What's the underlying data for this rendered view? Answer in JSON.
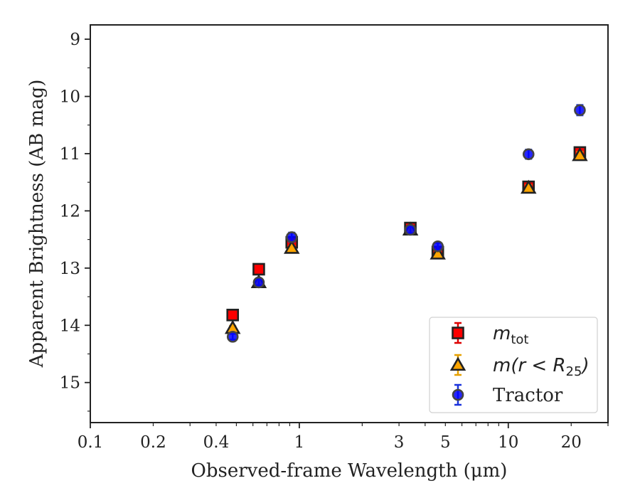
{
  "chart_data": {
    "type": "scatter",
    "xlabel": "Observed-frame Wavelength (μm)",
    "ylabel": "Apparent Brightness (AB mag)",
    "xscale": "log",
    "xlim": [
      0.1,
      30
    ],
    "ylim": [
      15.7,
      8.75
    ],
    "y_inverted": true,
    "x_ticks": [
      0.1,
      0.2,
      0.4,
      1,
      3,
      5,
      10,
      20
    ],
    "x_tick_labels": [
      "0.1",
      "0.2",
      "0.4",
      "1",
      "3",
      "5",
      "10",
      "20"
    ],
    "y_ticks": [
      9,
      10,
      11,
      12,
      13,
      14,
      15
    ],
    "y_tick_labels": [
      "9",
      "10",
      "11",
      "12",
      "13",
      "14",
      "15"
    ],
    "grid": false,
    "legend_position": "bottom-right",
    "series": [
      {
        "name": "m_tot",
        "legend_label": {
          "main": "m",
          "sub": "tot"
        },
        "marker": "square",
        "color": "#ff0000",
        "errbar_color": "#dd0000",
        "x": [
          0.48,
          0.64,
          0.92,
          3.4,
          4.6,
          12.5,
          22
        ],
        "y": [
          13.82,
          13.02,
          12.55,
          12.3,
          12.72,
          11.58,
          10.98
        ],
        "yerr": [
          0.04,
          0.04,
          0.04,
          0.04,
          0.04,
          0.05,
          0.06
        ]
      },
      {
        "name": "m(r < R25)",
        "legend_label": {
          "main": "m(r < R",
          "sub": "25",
          "tail": ")"
        },
        "marker": "triangle",
        "color": "#ffa500",
        "errbar_color": "#e6a000",
        "x": [
          0.48,
          0.64,
          0.92,
          3.4,
          4.6,
          12.5,
          22
        ],
        "y": [
          14.05,
          13.25,
          12.65,
          12.33,
          12.75,
          11.6,
          11.03
        ],
        "yerr": [
          0.04,
          0.04,
          0.04,
          0.04,
          0.04,
          0.05,
          0.06
        ]
      },
      {
        "name": "Tractor",
        "legend_label": {
          "main": "Tractor"
        },
        "marker": "circle",
        "color": "#0000ff",
        "errbar_color": "#1a33dd",
        "x": [
          0.48,
          0.64,
          0.92,
          3.4,
          4.6,
          12.5,
          22
        ],
        "y": [
          14.2,
          13.25,
          12.46,
          12.33,
          12.62,
          11.01,
          10.24
        ],
        "yerr": [
          0.05,
          0.05,
          0.08,
          0.06,
          0.06,
          0.08,
          0.09
        ]
      }
    ]
  }
}
